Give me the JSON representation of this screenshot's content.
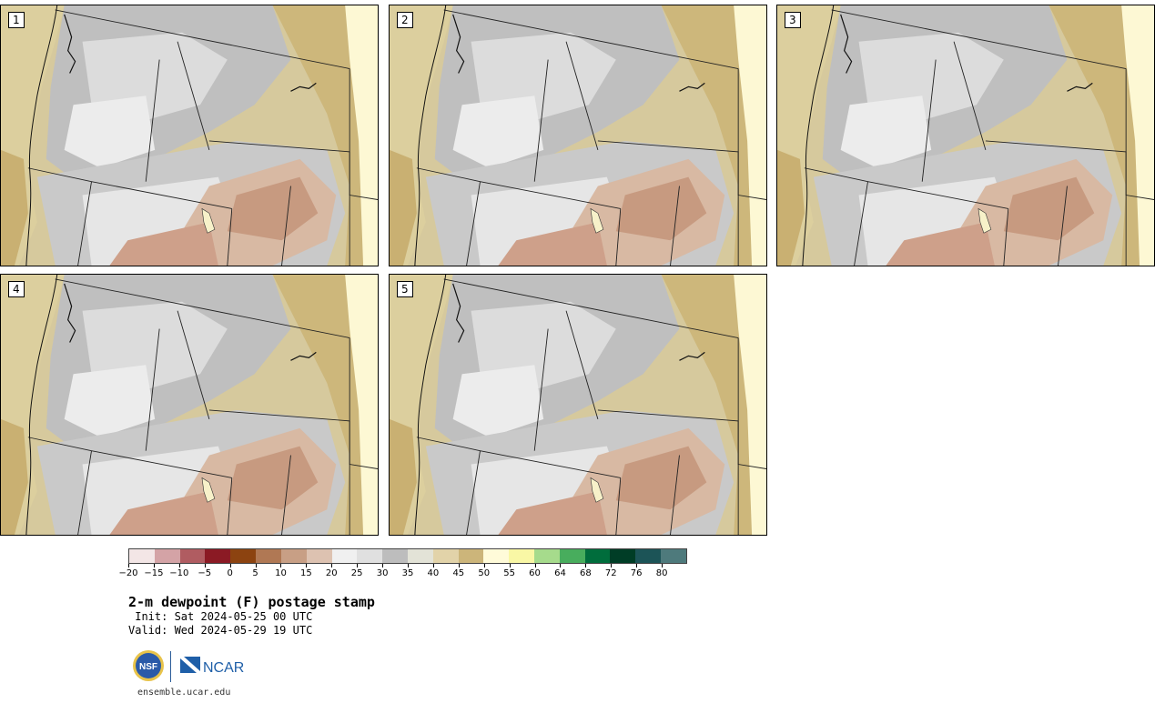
{
  "panels": [
    {
      "label": "1"
    },
    {
      "label": "2"
    },
    {
      "label": "3"
    },
    {
      "label": "4"
    },
    {
      "label": "5"
    }
  ],
  "colorbar": {
    "colors": [
      "#f3e6e6",
      "#d4a3a6",
      "#b05c61",
      "#8b1a24",
      "#8c4310",
      "#b07854",
      "#c89f85",
      "#ddc2b1",
      "#f0f0f0",
      "#e0e0e0",
      "#bdbdbd",
      "#e3e3d7",
      "#e2d3a9",
      "#ccb57a",
      "#fffbd9",
      "#f9f7a5",
      "#a6db8c",
      "#48ad5d",
      "#006d3c",
      "#003d26",
      "#1c5457",
      "#4e7a7c"
    ],
    "tick_labels": [
      "−20",
      "−15",
      "−10",
      "−5",
      "0",
      "5",
      "10",
      "15",
      "20",
      "25",
      "30",
      "35",
      "40",
      "45",
      "50",
      "55",
      "60",
      "64",
      "68",
      "72",
      "76",
      "80"
    ]
  },
  "title": "2-m dewpoint (F) postage stamp",
  "init": " Init: Sat 2024-05-25 00 UTC",
  "valid": "Valid: Wed 2024-05-29 19 UTC",
  "logos": {
    "nsf_text": "NSF",
    "ncar_text": "NCAR"
  },
  "url": "ensemble.ucar.edu"
}
